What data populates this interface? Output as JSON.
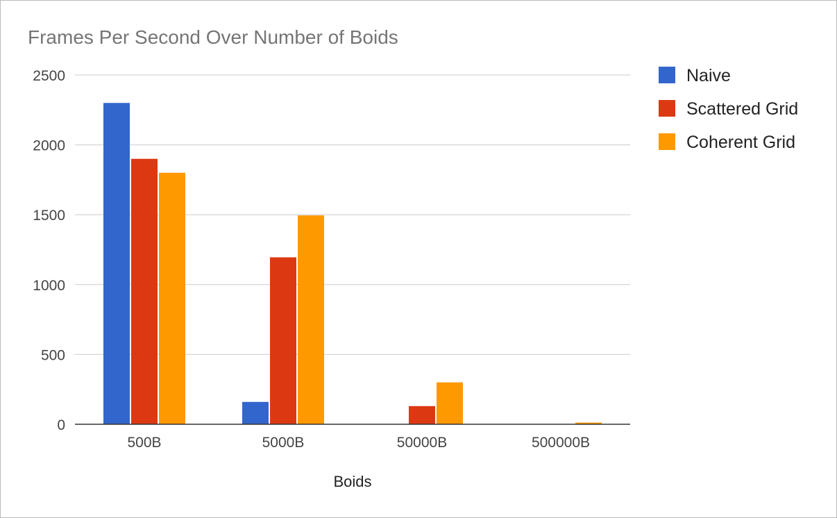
{
  "chart_data": {
    "type": "bar",
    "title": "Frames Per Second Over Number of Boids",
    "xlabel": "Boids",
    "ylabel": "",
    "categories": [
      "500B",
      "5000B",
      "50000B",
      "500000B"
    ],
    "series": [
      {
        "name": "Naive",
        "color": "#3366cc",
        "values": [
          2300,
          160,
          0,
          0
        ]
      },
      {
        "name": "Scattered Grid",
        "color": "#dc3912",
        "values": [
          1900,
          1195,
          130,
          0
        ]
      },
      {
        "name": "Coherent Grid",
        "color": "#ff9900",
        "values": [
          1800,
          1495,
          300,
          12
        ]
      }
    ],
    "ylim": [
      0,
      2500
    ],
    "yticks": [
      "0",
      "500",
      "1000",
      "1500",
      "2000",
      "2500"
    ],
    "grid": true,
    "legend_position": "right",
    "colors": {
      "title": "#757575",
      "tick_label": "#444444",
      "axis_label": "#222222",
      "legend_text": "#222222",
      "gridline": "#cccccc",
      "baseline": "#333333"
    }
  }
}
